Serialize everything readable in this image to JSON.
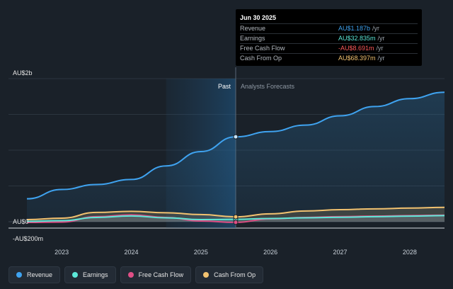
{
  "colors": {
    "revenue": "#3fa3f0",
    "earnings": "#5ce8d8",
    "fcf": "#e04f86",
    "cfo": "#f2c270",
    "background": "#1a2129"
  },
  "tooltip": {
    "date": "Jun 30 2025",
    "rows": [
      {
        "label": "Revenue",
        "value": "AU$1.187b",
        "unit": "/yr",
        "color": "#3fa3f0"
      },
      {
        "label": "Earnings",
        "value": "AU$32.835m",
        "unit": "/yr",
        "color": "#5ce8d8"
      },
      {
        "label": "Free Cash Flow",
        "value": "-AU$8.691m",
        "unit": "/yr",
        "color": "#ff5a5a"
      },
      {
        "label": "Cash From Op",
        "value": "AU$68.397m",
        "unit": "/yr",
        "color": "#f2c270"
      }
    ]
  },
  "legend": [
    {
      "label": "Revenue",
      "color": "#3fa3f0"
    },
    {
      "label": "Earnings",
      "color": "#5ce8d8"
    },
    {
      "label": "Free Cash Flow",
      "color": "#e04f86"
    },
    {
      "label": "Cash From Op",
      "color": "#f2c270"
    }
  ],
  "chart_data": {
    "type": "line",
    "ylim": [
      -200,
      2000
    ],
    "xlim": [
      2022.5,
      2028.5
    ],
    "y_tick_labels": [
      {
        "value": 2000,
        "label": "AU$2b"
      },
      {
        "value": 0,
        "label": "AU$0"
      },
      {
        "value": -200,
        "label": "-AU$200m"
      }
    ],
    "x_tick_labels": [
      "2023",
      "2024",
      "2025",
      "2026",
      "2027",
      "2028"
    ],
    "x_ticks": [
      2023,
      2024,
      2025,
      2026,
      2027,
      2028
    ],
    "past_label": "Past",
    "forecast_label": "Analysts Forecasts",
    "past_region": [
      2024.5,
      2025.5
    ],
    "divider_x": 2025.5,
    "series": [
      {
        "name": "Revenue",
        "color": "#3fa3f0",
        "x": [
          2022.5,
          2023,
          2023.5,
          2024,
          2024.5,
          2025,
          2025.5,
          2026,
          2026.5,
          2027,
          2027.5,
          2028,
          2028.5
        ],
        "y": [
          320,
          450,
          520,
          590,
          780,
          980,
          1187,
          1260,
          1350,
          1480,
          1610,
          1720,
          1810
        ]
      },
      {
        "name": "Earnings",
        "color": "#5ce8d8",
        "x": [
          2022.5,
          2023,
          2023.5,
          2024,
          2024.5,
          2025,
          2025.5,
          2026,
          2026.5,
          2027,
          2027.5,
          2028,
          2028.5
        ],
        "y": [
          5,
          15,
          60,
          80,
          55,
          30,
          33,
          45,
          55,
          62,
          70,
          78,
          85
        ]
      },
      {
        "name": "Free Cash Flow",
        "color": "#e04f86",
        "x": [
          2022.5,
          2023,
          2023.5,
          2024,
          2024.5,
          2025,
          2025.5,
          2026,
          2026.5,
          2027,
          2027.5,
          2028,
          2028.5
        ],
        "y": [
          -10,
          -5,
          70,
          95,
          60,
          10,
          -9,
          40,
          60,
          70,
          78,
          85,
          92
        ]
      },
      {
        "name": "Cash From Op",
        "color": "#f2c270",
        "x": [
          2022.5,
          2023,
          2023.5,
          2024,
          2024.5,
          2025,
          2025.5,
          2026,
          2026.5,
          2027,
          2027.5,
          2028,
          2028.5
        ],
        "y": [
          30,
          50,
          130,
          145,
          125,
          100,
          68,
          110,
          150,
          168,
          180,
          190,
          200
        ]
      }
    ],
    "highlight_x": 2025.5
  }
}
